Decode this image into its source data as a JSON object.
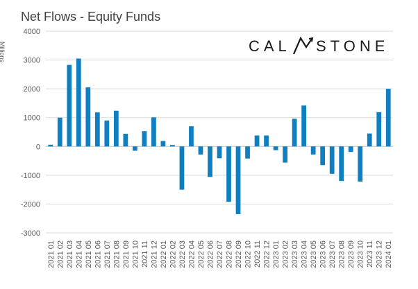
{
  "title": "Net Flows - Equity Funds",
  "ylabel": "Millions",
  "logo": {
    "text": "CALASTONE",
    "left_text": "CAL",
    "right_text": "STONE"
  },
  "colors": {
    "bar": "#0f7fbf",
    "grid": "#d9d9d9",
    "axis_text": "#595959",
    "logo": "#1a1a1a"
  },
  "chart_data": {
    "type": "bar",
    "title": "Net Flows - Equity Funds",
    "xlabel": "",
    "ylabel": "Millions",
    "ylim": [
      -3000,
      4000
    ],
    "yticks": [
      4000,
      3000,
      2000,
      1000,
      0,
      -1000,
      -2000,
      -3000
    ],
    "grid": true,
    "categories": [
      "2021 01",
      "2021 02",
      "2021 03",
      "2021 04",
      "2021 05",
      "2021 06",
      "2021 07",
      "2021 08",
      "2021 09",
      "2021 10",
      "2021 11",
      "2021 12",
      "2022 01",
      "2022 02",
      "2022 03",
      "2022 04",
      "2022 05",
      "2022 06",
      "2022 07",
      "2022 08",
      "2022 09",
      "2022 10",
      "2022 11",
      "2022 12",
      "2023 01",
      "2023 02",
      "2023 03",
      "2023 04",
      "2023 05",
      "2023 06",
      "2023 07",
      "2023 08",
      "2023 09",
      "2023 10",
      "2023 11",
      "2023 12",
      "2024 01"
    ],
    "values": [
      60,
      1000,
      2830,
      3050,
      2050,
      1180,
      900,
      1240,
      440,
      -150,
      530,
      1010,
      190,
      50,
      -1500,
      700,
      -280,
      -1060,
      -410,
      -1920,
      -2350,
      -420,
      380,
      380,
      -130,
      -560,
      960,
      1420,
      -280,
      -650,
      -950,
      -1200,
      -190,
      -1220,
      450,
      1190,
      2000
    ]
  }
}
